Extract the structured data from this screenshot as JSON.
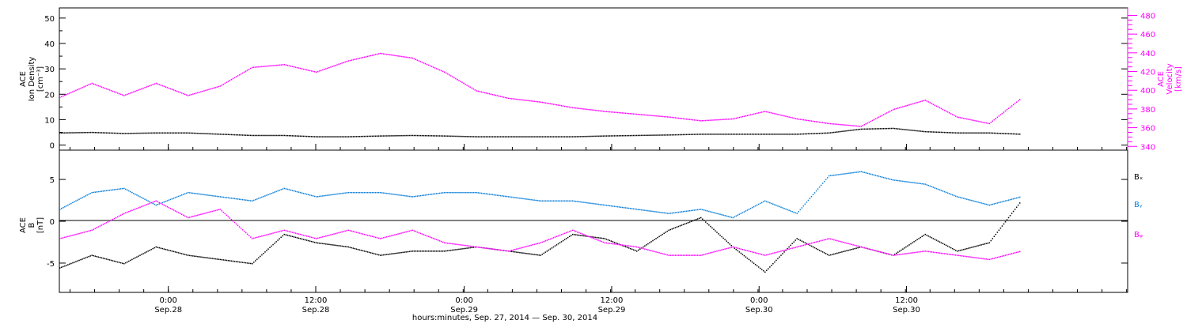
{
  "colors": {
    "black": "#000000",
    "magenta": "#ff00ff",
    "blue": "#0a7fd8"
  },
  "chart_data": [
    {
      "type": "scatter",
      "panel": "top",
      "ylabel_left": [
        "ACE",
        "Ion Density",
        "[cm⁻³]"
      ],
      "ylabel_right": [
        "ACE",
        "Velocity",
        "[km/s]"
      ],
      "ylim_left": [
        -2,
        54
      ],
      "ylim_right": [
        336,
        488
      ],
      "yticks_left": [
        "0",
        "10",
        "20",
        "30",
        "40",
        "50"
      ],
      "yticks_right": [
        "340",
        "360",
        "380",
        "400",
        "420",
        "440",
        "460",
        "480"
      ],
      "series": [
        {
          "name": "Ion Density",
          "axis": "left",
          "color": "#000000",
          "x": [
            0,
            3,
            6,
            9,
            12,
            15,
            18,
            21,
            24,
            27,
            30,
            33,
            36,
            39,
            42,
            45,
            48,
            51,
            54,
            57,
            60,
            63,
            66,
            69,
            72,
            75,
            78,
            81,
            84,
            87,
            90
          ],
          "y": [
            5,
            5.2,
            4.8,
            5,
            5,
            4.5,
            4,
            4,
            3.5,
            3.5,
            3.8,
            4,
            3.8,
            3.5,
            3.5,
            3.5,
            3.5,
            3.8,
            4,
            4.2,
            4.5,
            4.5,
            4.5,
            4.5,
            5,
            6.5,
            6.8,
            5.5,
            5,
            5,
            4.5
          ]
        },
        {
          "name": "Velocity",
          "axis": "right",
          "color": "#ff00ff",
          "x": [
            0,
            3,
            6,
            9,
            12,
            15,
            18,
            21,
            24,
            27,
            30,
            33,
            36,
            39,
            42,
            45,
            48,
            51,
            54,
            57,
            60,
            63,
            66,
            69,
            72,
            75,
            78,
            81,
            84,
            87,
            90
          ],
          "y": [
            393,
            408,
            395,
            408,
            395,
            405,
            425,
            428,
            420,
            432,
            440,
            435,
            420,
            400,
            392,
            388,
            382,
            378,
            375,
            372,
            368,
            370,
            378,
            370,
            365,
            362,
            380,
            390,
            372,
            365,
            392
          ]
        }
      ]
    },
    {
      "type": "scatter",
      "panel": "bottom",
      "ylabel_left": [
        "ACE",
        "B",
        "[nT]"
      ],
      "ylim": [
        -8.5,
        8.5
      ],
      "yticks": [
        "5",
        "0",
        "-5"
      ],
      "legend": [
        "Bₓ",
        "Bᵧ",
        "Bᵩ"
      ],
      "series": [
        {
          "name": "Bx",
          "color": "#000000",
          "x": [
            0,
            3,
            6,
            9,
            12,
            15,
            18,
            21,
            24,
            27,
            30,
            33,
            36,
            39,
            42,
            45,
            48,
            51,
            54,
            57,
            60,
            63,
            66,
            69,
            72,
            75,
            78,
            81,
            84,
            87,
            90
          ],
          "y": [
            -5.5,
            -4,
            -5,
            -3,
            -4,
            -4.5,
            -5,
            -1.5,
            -2.5,
            -3,
            -4,
            -3.5,
            -3.5,
            -3,
            -3.5,
            -4,
            -1.5,
            -2,
            -3.5,
            -1,
            0.5,
            -3,
            -6,
            -2,
            -4,
            -3,
            -4,
            -1.5,
            -3.5,
            -2.5,
            2.5
          ]
        },
        {
          "name": "By",
          "color": "#0a7fd8",
          "x": [
            0,
            3,
            6,
            9,
            12,
            15,
            18,
            21,
            24,
            27,
            30,
            33,
            36,
            39,
            42,
            45,
            48,
            51,
            54,
            57,
            60,
            63,
            66,
            69,
            72,
            75,
            78,
            81,
            84,
            87,
            90
          ],
          "y": [
            1.5,
            3.5,
            4,
            2,
            3.5,
            3,
            2.5,
            4,
            3,
            3.5,
            3.5,
            3,
            3.5,
            3.5,
            3,
            2.5,
            2.5,
            2,
            1.5,
            1,
            1.5,
            0.5,
            2.5,
            1,
            5.5,
            6,
            5,
            4.5,
            3,
            2,
            3
          ]
        },
        {
          "name": "Bz",
          "color": "#ff00ff",
          "x": [
            0,
            3,
            6,
            9,
            12,
            15,
            18,
            21,
            24,
            27,
            30,
            33,
            36,
            39,
            42,
            45,
            48,
            51,
            54,
            57,
            60,
            63,
            66,
            69,
            72,
            75,
            78,
            81,
            84,
            87,
            90
          ],
          "y": [
            -2,
            -1,
            1,
            2.5,
            0.5,
            1.5,
            -2,
            -1,
            -2,
            -1,
            -2,
            -1,
            -2.5,
            -3,
            -3.5,
            -2.5,
            -1,
            -2.5,
            -3,
            -4,
            -4,
            -3,
            -4,
            -3,
            -2,
            -3,
            -4,
            -3.5,
            -4,
            -4.5,
            -3.5
          ]
        }
      ]
    }
  ],
  "xaxis": {
    "xlim": [
      0,
      100
    ],
    "ticks": [
      {
        "x": 10.2,
        "time": "0:00",
        "date": "Sep.28"
      },
      {
        "x": 24,
        "time": "12:00",
        "date": "Sep.28"
      },
      {
        "x": 37.9,
        "time": "0:00",
        "date": "Sep.29"
      },
      {
        "x": 51.7,
        "time": "12:00",
        "date": "Sep.29"
      },
      {
        "x": 65.5,
        "time": "0:00",
        "date": "Sep.30"
      },
      {
        "x": 79.3,
        "time": "12:00",
        "date": "Sep.30"
      }
    ],
    "label": "hours:minutes, Sep. 27, 2014 — Sep. 30, 2014"
  }
}
